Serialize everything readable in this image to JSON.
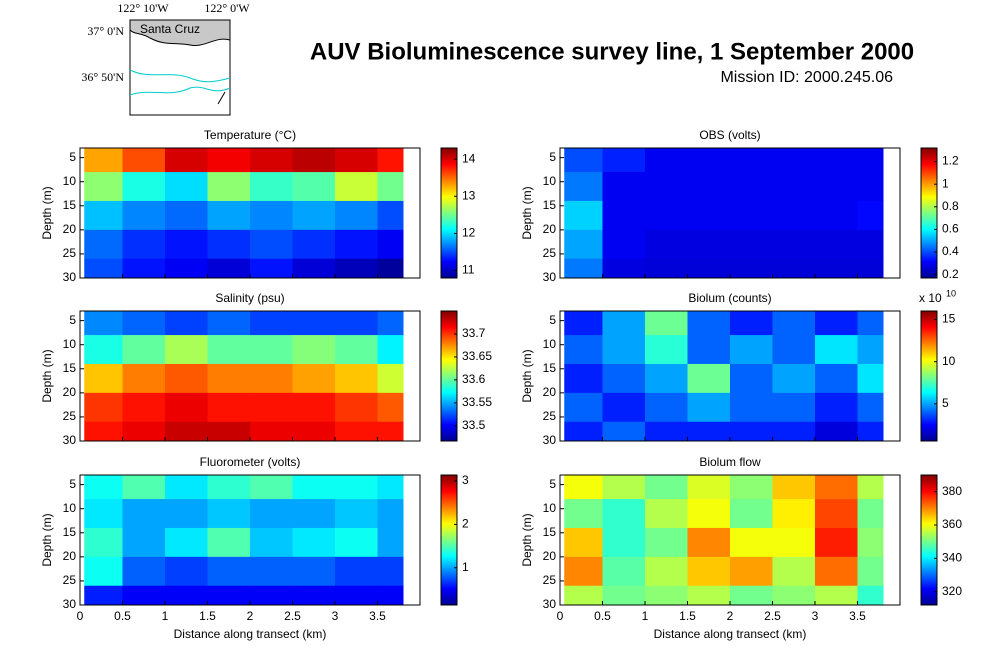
{
  "title": "AUV Bioluminescence survey line, 1 September 2000",
  "subtitle": "Mission ID: 2000.245.06",
  "map": {
    "lon_labels": [
      "122° 10'W",
      "122° 0'W"
    ],
    "lat_labels": [
      "37° 0'N",
      "36° 50'N"
    ],
    "place": "Santa Cruz"
  },
  "chart_data": [
    {
      "type": "heatmap",
      "title": "Temperature (°C)",
      "ylabel": "Depth (m)",
      "xlim": [
        0,
        4
      ],
      "xticks": [
        0,
        0.5,
        1,
        1.5,
        2,
        2.5,
        3,
        3.5
      ],
      "ylim": [
        3,
        30
      ],
      "yticks": [
        5,
        10,
        15,
        20,
        25,
        30
      ],
      "x_edges": [
        0.05,
        0.5,
        1,
        1.5,
        2,
        2.5,
        3,
        3.5,
        3.8
      ],
      "y_edges": [
        3,
        8,
        14,
        20,
        26,
        30
      ],
      "z": [
        [
          13.3,
          13.6,
          14.0,
          13.9,
          14.0,
          14.1,
          14.0,
          13.8
        ],
        [
          12.6,
          12.2,
          12.0,
          12.6,
          12.3,
          12.4,
          12.8,
          12.5
        ],
        [
          11.9,
          11.7,
          11.6,
          11.8,
          11.7,
          11.8,
          11.7,
          11.5
        ],
        [
          11.6,
          11.4,
          11.3,
          11.4,
          11.5,
          11.4,
          11.3,
          11.2
        ],
        [
          11.5,
          11.3,
          11.2,
          11.1,
          11.3,
          11.1,
          11.0,
          10.9
        ]
      ],
      "zlim": [
        10.8,
        14.3
      ],
      "zticks": [
        11,
        12,
        13,
        14
      ]
    },
    {
      "type": "heatmap",
      "title": "OBS (volts)",
      "ylabel": "Depth (m)",
      "xlim": [
        0,
        4
      ],
      "xticks": [
        0,
        0.5,
        1,
        1.5,
        2,
        2.5,
        3,
        3.5
      ],
      "ylim": [
        3,
        30
      ],
      "yticks": [
        5,
        10,
        15,
        20,
        25,
        30
      ],
      "x_edges": [
        0.05,
        0.5,
        1,
        1.5,
        2,
        2.5,
        3,
        3.5,
        3.8
      ],
      "y_edges": [
        3,
        8,
        14,
        20,
        26,
        30
      ],
      "z": [
        [
          0.4,
          0.35,
          0.3,
          0.3,
          0.3,
          0.3,
          0.3,
          0.3
        ],
        [
          0.45,
          0.3,
          0.3,
          0.3,
          0.3,
          0.3,
          0.3,
          0.3
        ],
        [
          0.55,
          0.3,
          0.3,
          0.3,
          0.3,
          0.3,
          0.3,
          0.32
        ],
        [
          0.5,
          0.3,
          0.28,
          0.28,
          0.28,
          0.28,
          0.28,
          0.28
        ],
        [
          0.45,
          0.28,
          0.27,
          0.27,
          0.27,
          0.27,
          0.27,
          0.27
        ]
      ],
      "zlim": [
        0.17,
        1.32
      ],
      "zticks": [
        0.2,
        0.4,
        0.6,
        0.8,
        1,
        1.2
      ]
    },
    {
      "type": "heatmap",
      "title": "Salinity (psu)",
      "ylabel": "Depth (m)",
      "xlim": [
        0,
        4
      ],
      "xticks": [
        0,
        0.5,
        1,
        1.5,
        2,
        2.5,
        3,
        3.5
      ],
      "ylim": [
        3,
        30
      ],
      "yticks": [
        5,
        10,
        15,
        20,
        25,
        30
      ],
      "x_edges": [
        0.05,
        0.5,
        1,
        1.5,
        2,
        2.5,
        3,
        3.5,
        3.8
      ],
      "y_edges": [
        3,
        8,
        14,
        20,
        26,
        30
      ],
      "z": [
        [
          33.54,
          33.53,
          33.52,
          33.53,
          33.52,
          33.52,
          33.52,
          33.53
        ],
        [
          33.58,
          33.6,
          33.62,
          33.6,
          33.6,
          33.61,
          33.6,
          33.57
        ],
        [
          33.66,
          33.68,
          33.69,
          33.68,
          33.68,
          33.67,
          33.66,
          33.63
        ],
        [
          33.7,
          33.71,
          33.72,
          33.71,
          33.71,
          33.71,
          33.7,
          33.69
        ],
        [
          33.71,
          33.72,
          33.73,
          33.73,
          33.72,
          33.72,
          33.71,
          33.71
        ]
      ],
      "zlim": [
        33.467,
        33.75
      ],
      "zticks": [
        33.5,
        33.55,
        33.6,
        33.65,
        33.7
      ]
    },
    {
      "type": "heatmap",
      "title": "Biolum (counts)",
      "ylabel": "Depth (m)",
      "xlim": [
        0,
        4
      ],
      "xticks": [
        0,
        0.5,
        1,
        1.5,
        2,
        2.5,
        3,
        3.5
      ],
      "ylim": [
        3,
        30
      ],
      "yticks": [
        5,
        10,
        15,
        20,
        25,
        30
      ],
      "scale_label": "x 10",
      "scale_exponent": "10",
      "x_edges": [
        0.05,
        0.5,
        1,
        1.5,
        2,
        2.5,
        3,
        3.5,
        3.8
      ],
      "y_edges": [
        3,
        8,
        14,
        20,
        26,
        30
      ],
      "z": [
        [
          3,
          5,
          8,
          4,
          3,
          4,
          3,
          4
        ],
        [
          4,
          5,
          7,
          4,
          5,
          4,
          6,
          5
        ],
        [
          3,
          4,
          5,
          8,
          4,
          5,
          4,
          6
        ],
        [
          4,
          3,
          4,
          5,
          4,
          4,
          3,
          4
        ],
        [
          3,
          4,
          3,
          3,
          3,
          3,
          2,
          3
        ]
      ],
      "zlim": [
        0.6,
        16
      ],
      "zticks": [
        5,
        10,
        15
      ]
    },
    {
      "type": "heatmap",
      "title": "Fluorometer (volts)",
      "ylabel": "Depth (m)",
      "xlabel": "Distance along transect (km)",
      "xlim": [
        0,
        4
      ],
      "xticks": [
        0,
        0.5,
        1,
        1.5,
        2,
        2.5,
        3,
        3.5
      ],
      "ylim": [
        3,
        30
      ],
      "yticks": [
        5,
        10,
        15,
        20,
        25,
        30
      ],
      "x_edges": [
        0.05,
        0.5,
        1,
        1.5,
        2,
        2.5,
        3,
        3.5,
        3.8
      ],
      "y_edges": [
        3,
        8,
        14,
        20,
        26,
        30
      ],
      "z": [
        [
          1.3,
          1.5,
          1.2,
          1.4,
          1.5,
          1.3,
          1.3,
          1.2
        ],
        [
          1.2,
          1.0,
          1.0,
          1.1,
          1.0,
          1.0,
          1.1,
          1.0
        ],
        [
          1.4,
          1.0,
          1.2,
          1.5,
          1.1,
          1.2,
          1.3,
          1.0
        ],
        [
          1.3,
          0.8,
          0.7,
          0.8,
          0.8,
          0.8,
          0.7,
          0.7
        ],
        [
          0.6,
          0.5,
          0.5,
          0.5,
          0.5,
          0.5,
          0.5,
          0.5
        ]
      ],
      "zlim": [
        0.14,
        3.14
      ],
      "zticks": [
        1,
        2,
        3
      ]
    },
    {
      "type": "heatmap",
      "title": "Biolum flow",
      "ylabel": "Depth (m)",
      "xlabel": "Distance along transect (km)",
      "xlim": [
        0,
        4
      ],
      "xticks": [
        0,
        0.5,
        1,
        1.5,
        2,
        2.5,
        3,
        3.5
      ],
      "ylim": [
        3,
        30
      ],
      "yticks": [
        5,
        10,
        15,
        20,
        25,
        30
      ],
      "x_edges": [
        0.05,
        0.5,
        1,
        1.5,
        2,
        2.5,
        3,
        3.5,
        3.8
      ],
      "y_edges": [
        3,
        8,
        14,
        20,
        26,
        30
      ],
      "z": [
        [
          360,
          355,
          350,
          358,
          352,
          365,
          372,
          355
        ],
        [
          350,
          345,
          355,
          360,
          350,
          362,
          375,
          350
        ],
        [
          365,
          345,
          350,
          370,
          360,
          360,
          378,
          352
        ],
        [
          370,
          348,
          355,
          365,
          368,
          355,
          372,
          350
        ],
        [
          355,
          350,
          352,
          355,
          350,
          352,
          355,
          345
        ]
      ],
      "zlim": [
        312,
        390
      ],
      "zticks": [
        320,
        340,
        360,
        380
      ]
    }
  ]
}
